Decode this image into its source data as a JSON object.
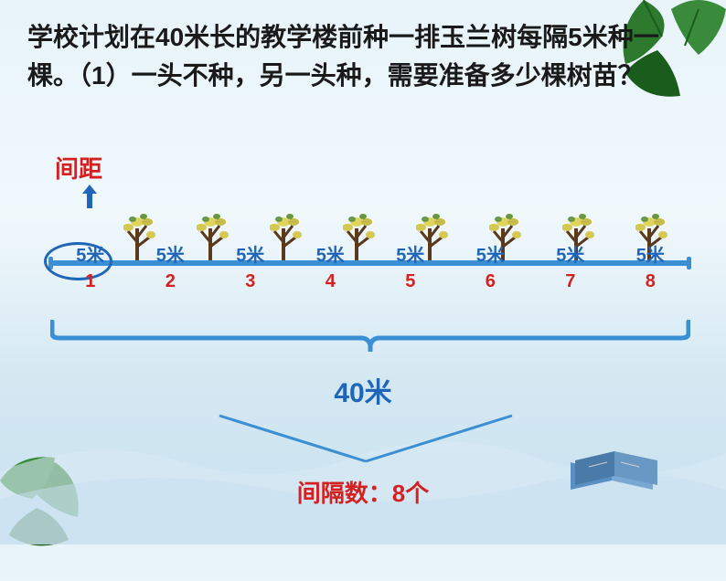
{
  "problem": {
    "text": "学校计划在40米长的教学楼前种一排玉兰树每隔5米种一棵。（1）一头不种，另一头种，需要准备多少棵树苗？"
  },
  "intervalLabel": "间距",
  "diagram": {
    "intervalDistance": "5米",
    "intervals": [
      "5米",
      "5米",
      "5米",
      "5米",
      "5米",
      "5米",
      "5米",
      "5米"
    ],
    "counts": [
      "1",
      "2",
      "3",
      "4",
      "5",
      "6",
      "7",
      "8"
    ],
    "totalLength": "40米",
    "intervalCount": "间隔数：8个",
    "treeCount": 8,
    "colors": {
      "primaryBlue": "#2066b8",
      "lineBlue": "#3b8fd4",
      "red": "#d42020",
      "textBlack": "#1a1a1a",
      "leafGreen": "#2d7a2f",
      "leafDark": "#1a5c1c",
      "treeTrunk": "#5a3a1a",
      "treeYellow": "#d4c850",
      "treeGreen": "#6a9840"
    }
  }
}
